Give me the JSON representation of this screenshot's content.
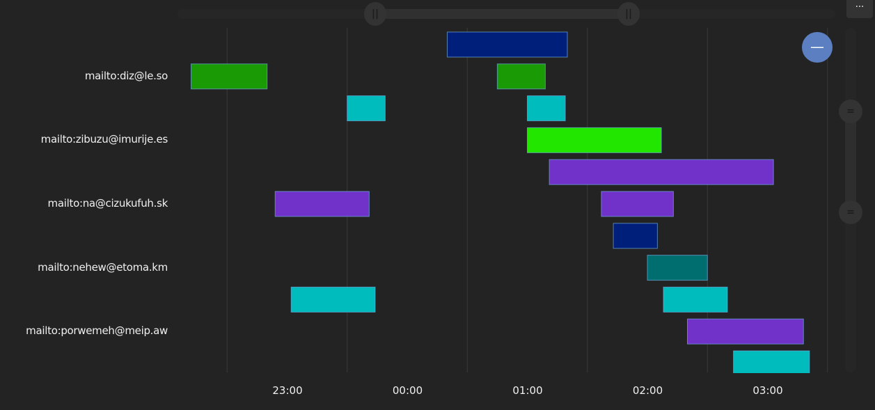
{
  "chart_data": {
    "type": "gantt",
    "x_ticks": [
      "23:00",
      "00:00",
      "01:00",
      "02:00",
      "03:00"
    ],
    "x_range": [
      "22:05",
      "03:30"
    ],
    "grid": "vertical",
    "row_labels": [
      "",
      "mailto:diz@le.so",
      "",
      "mailto:zibuzu@imurije.es",
      "",
      "mailto:na@cizukufuh.sk",
      "",
      "mailto:nehew@etoma.km",
      "",
      "mailto:porwemeh@meip.aw",
      ""
    ],
    "bars": [
      {
        "row": 0,
        "start": "00:20",
        "end": "01:20",
        "color": "#001f7a"
      },
      {
        "row": 1,
        "start": "22:12",
        "end": "22:50",
        "color": "#1a9a05"
      },
      {
        "row": 1,
        "start": "00:45",
        "end": "01:09",
        "color": "#1a9a05"
      },
      {
        "row": 2,
        "start": "23:30",
        "end": "23:49",
        "color": "#00bcbc"
      },
      {
        "row": 2,
        "start": "01:00",
        "end": "01:19",
        "color": "#00bcbc"
      },
      {
        "row": 3,
        "start": "01:00",
        "end": "02:07",
        "color": "#22e600"
      },
      {
        "row": 4,
        "start": "01:11",
        "end": "03:03",
        "color": "#7032c8"
      },
      {
        "row": 5,
        "start": "22:54",
        "end": "23:41",
        "color": "#7032c8"
      },
      {
        "row": 5,
        "start": "01:37",
        "end": "02:13",
        "color": "#7032c8"
      },
      {
        "row": 6,
        "start": "01:43",
        "end": "02:05",
        "color": "#001f7a"
      },
      {
        "row": 7,
        "start": "02:00",
        "end": "02:30",
        "color": "#006e6e"
      },
      {
        "row": 8,
        "start": "23:02",
        "end": "23:44",
        "color": "#00bcbc"
      },
      {
        "row": 8,
        "start": "02:08",
        "end": "02:40",
        "color": "#00bcbc"
      },
      {
        "row": 9,
        "start": "02:20",
        "end": "03:18",
        "color": "#7032c8"
      },
      {
        "row": 10,
        "start": "02:43",
        "end": "03:21",
        "color": "#00bcbc"
      }
    ]
  },
  "controls": {
    "menu_icon": "ellipsis-icon",
    "menu_label": "...",
    "zoom_icon": "minus-icon",
    "zoom_label": "—",
    "handle_h": "||",
    "handle_v": "="
  }
}
